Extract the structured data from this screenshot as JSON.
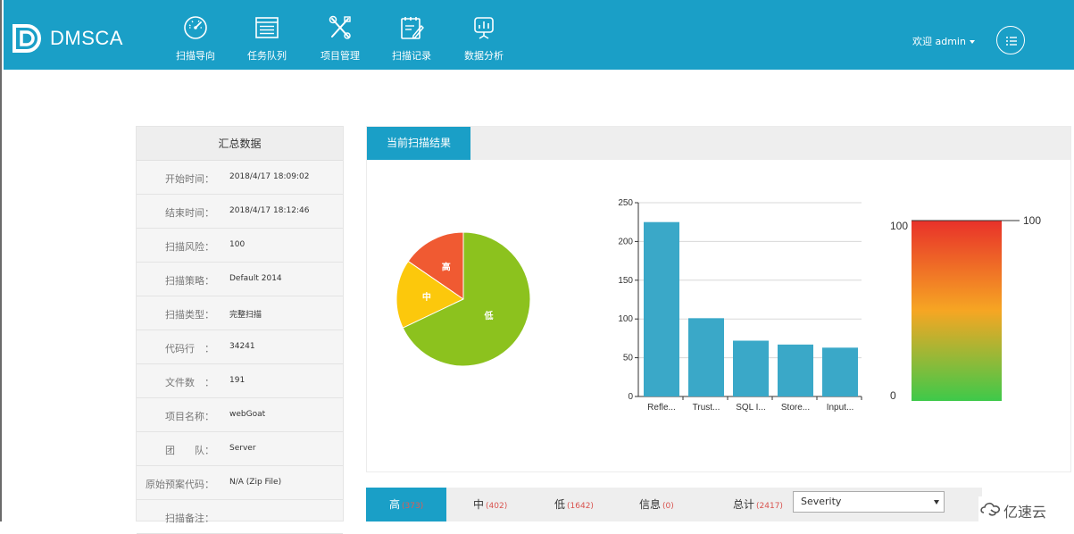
{
  "header": {
    "brand": "DMSCA",
    "nav": [
      {
        "label": "扫描导向",
        "icon": "gauge-icon"
      },
      {
        "label": "任务队列",
        "icon": "queue-list-icon"
      },
      {
        "label": "项目管理",
        "icon": "tools-icon"
      },
      {
        "label": "扫描记录",
        "icon": "record-edit-icon"
      },
      {
        "label": "数据分析",
        "icon": "presentation-chart-icon"
      }
    ],
    "user_label": "欢迎 admin",
    "menu_icon": "list-icon"
  },
  "summary": {
    "title": "汇总数据",
    "rows": [
      {
        "key": "开始时间：",
        "value": "2018/4/17 18:09:02"
      },
      {
        "key": "结束时间：",
        "value": "2018/4/17 18:12:46"
      },
      {
        "key": "扫描风险：",
        "value": "100"
      },
      {
        "key": "扫描策略：",
        "value": "Default 2014"
      },
      {
        "key": "扫描类型：",
        "value": "完整扫描"
      },
      {
        "key": "代码行　：",
        "value": "34241"
      },
      {
        "key": "文件数　：",
        "value": "191"
      },
      {
        "key": "项目名称：",
        "value": "webGoat"
      },
      {
        "key": "团　　队：",
        "value": "Server"
      },
      {
        "key": "原始预案代码：",
        "value": "N/A (Zip File)"
      },
      {
        "key": "扫描备注：",
        "value": ""
      }
    ]
  },
  "result": {
    "tab_label": "当前扫描结果"
  },
  "chart_data": [
    {
      "type": "pie",
      "labels": [
        "高",
        "中",
        "低"
      ],
      "values": [
        373,
        402,
        1642
      ],
      "colors": [
        "#f05a32",
        "#fcc80c",
        "#8cc21e"
      ]
    },
    {
      "type": "bar",
      "categories": [
        "Refle...",
        "Trust...",
        "SQL I...",
        "Store...",
        "Input..."
      ],
      "values": [
        225,
        101,
        72,
        67,
        63
      ],
      "ylim": [
        0,
        250
      ],
      "yticks": [
        0,
        50,
        100,
        150,
        200,
        250
      ],
      "color": "#3aa8c8",
      "grid": true
    },
    {
      "type": "gauge",
      "value": 100,
      "min": 0,
      "max": 100,
      "tick_labels": [
        "100",
        "0"
      ],
      "marker_label": "100",
      "gradient": [
        "#e8312a",
        "#f6a623",
        "#3ec94a"
      ]
    }
  ],
  "severity_tabs": [
    {
      "label": "高",
      "count": "(373)"
    },
    {
      "label": "中",
      "count": "(402)"
    },
    {
      "label": "低",
      "count": "(1642)"
    },
    {
      "label": "信息",
      "count": "(0)"
    },
    {
      "label": "总计",
      "count": "(2417)"
    }
  ],
  "sort_select": {
    "value": "Severity"
  },
  "watermark": {
    "text": "亿速云"
  }
}
